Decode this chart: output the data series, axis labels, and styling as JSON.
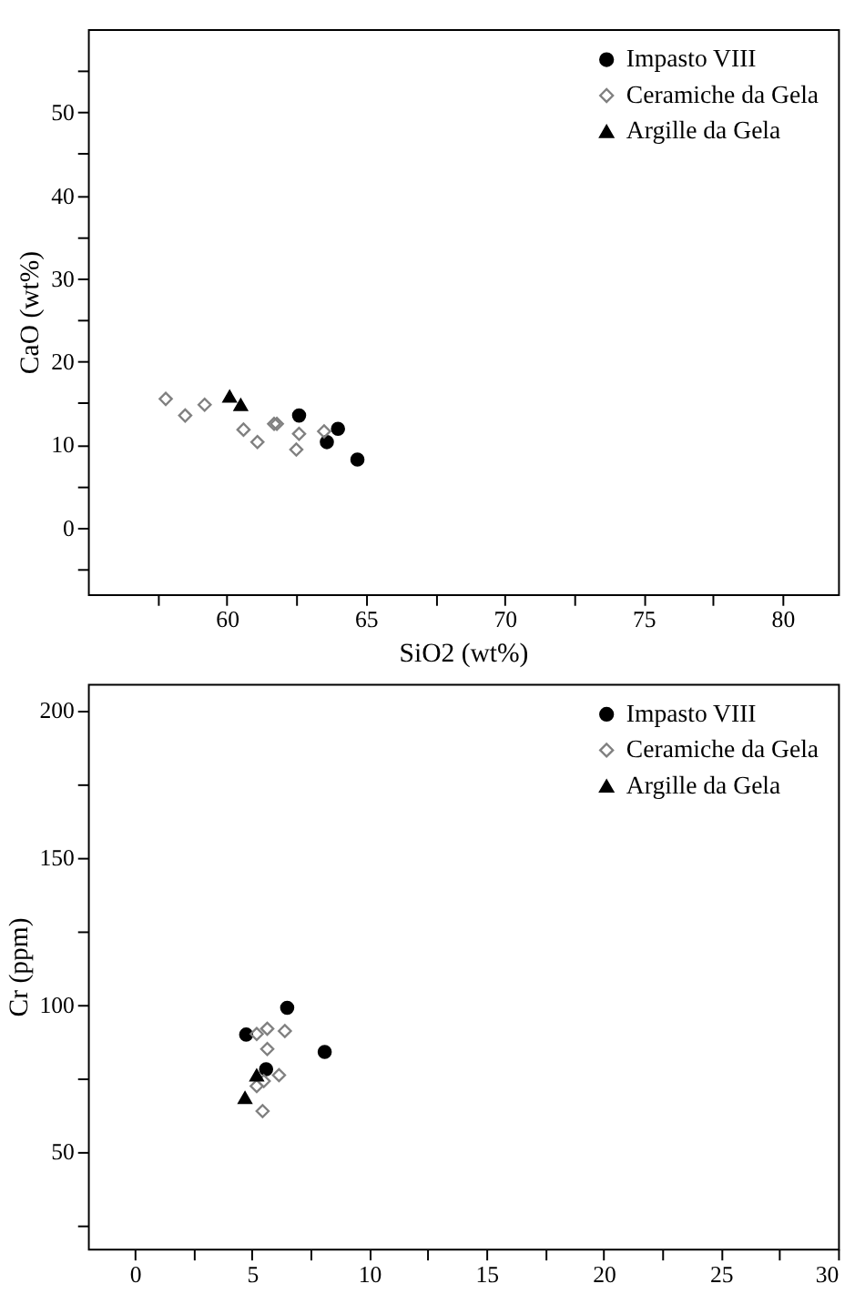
{
  "chart_data": [
    {
      "type": "scatter",
      "xlabel": "SiO2 (wt%)",
      "ylabel": "CaO (wt%)",
      "xlim": [
        55,
        82
      ],
      "ylim": [
        -8,
        60
      ],
      "xticks": [
        {
          "value": 57.5,
          "label": null
        },
        60,
        {
          "value": 62.5,
          "label": null
        },
        65,
        {
          "value": 67.5,
          "label": null
        },
        70,
        {
          "value": 72.5,
          "label": null
        },
        75,
        {
          "value": 77.5,
          "label": null
        },
        80
      ],
      "yticks": [
        {
          "value": -5,
          "label": null
        },
        0,
        {
          "value": 5,
          "label": null
        },
        10,
        {
          "value": 15,
          "label": null
        },
        20,
        {
          "value": 25,
          "label": null
        },
        30,
        {
          "value": 35,
          "label": null
        },
        40,
        {
          "value": 45,
          "label": null
        },
        50,
        {
          "value": 55,
          "label": null
        }
      ],
      "grid": false,
      "legend": "top right",
      "series": [
        {
          "name": "Impasto VIII",
          "color": "#000000",
          "marker": "circle",
          "x": [
            62.6,
            63.6,
            64.0,
            64.7
          ],
          "values": [
            13.5,
            10.3,
            11.9,
            8.2
          ]
        },
        {
          "name": "Ceramiche da Gela",
          "color": "#808080",
          "marker": "diamond",
          "x": [
            57.8,
            58.5,
            59.2,
            60.6,
            61.1,
            61.7,
            61.8,
            62.5,
            62.6,
            63.5
          ],
          "values": [
            15.5,
            13.5,
            14.8,
            11.8,
            10.3,
            12.5,
            12.5,
            9.4,
            11.3,
            11.6
          ]
        },
        {
          "name": "Argille da Gela",
          "color": "#000000",
          "marker": "triangle",
          "x": [
            60.1,
            60.5
          ],
          "values": [
            15.8,
            14.8
          ]
        }
      ]
    },
    {
      "type": "scatter",
      "ylabel": "Cr (ppm)",
      "xlim": [
        -2,
        30
      ],
      "ylim": [
        17,
        209
      ],
      "xticks": [
        0,
        {
          "value": 2.5,
          "label": null
        },
        5,
        {
          "value": 7.5,
          "label": null
        },
        10,
        {
          "value": 12.5,
          "label": null
        },
        15,
        {
          "value": 17.5,
          "label": null
        },
        20,
        {
          "value": 22.5,
          "label": null
        },
        25,
        {
          "value": 27.5,
          "label": null
        },
        30
      ],
      "yticks": [
        {
          "value": 25,
          "label": null
        },
        50,
        {
          "value": 75,
          "label": null
        },
        100,
        {
          "value": 125,
          "label": null
        },
        150,
        {
          "value": 175,
          "label": null
        },
        200
      ],
      "grid": false,
      "legend": "top right",
      "series": [
        {
          "name": "Impasto VIII",
          "color": "#000000",
          "marker": "circle",
          "x": [
            4.75,
            6.5,
            8.1,
            5.6
          ],
          "values": [
            89.8,
            98.9,
            83.9,
            78.0
          ]
        },
        {
          "name": "Ceramiche da Gela",
          "color": "#808080",
          "marker": "diamond",
          "x": [
            5.2,
            5.65,
            6.4,
            5.65,
            5.2,
            6.15,
            5.45,
            5.5
          ],
          "values": [
            90,
            91.8,
            91,
            84.9,
            72.3,
            76,
            63.8,
            74
          ]
        },
        {
          "name": "Argille da Gela",
          "color": "#000000",
          "marker": "triangle",
          "x": [
            4.7,
            5.2
          ],
          "values": [
            68.3,
            76
          ]
        }
      ]
    }
  ]
}
